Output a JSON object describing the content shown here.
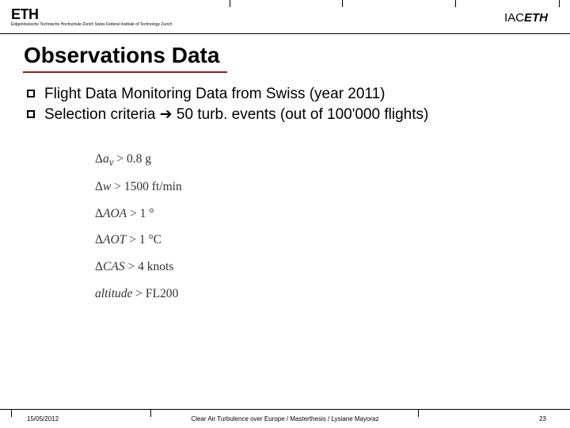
{
  "header": {
    "logo_main": "ETH",
    "logo_sub": "Eidgenössische Technische Hochschule Zürich\nSwiss Federal Institute of Technology Zurich",
    "iac_prefix": "IAC",
    "iac_suffix": "ETH"
  },
  "title": "Observations Data",
  "bullets": [
    "Flight Data Monitoring Data from Swiss (year 2011)",
    "Selection criteria ➔ 50 turb. events (out of 100'000 flights)"
  ],
  "formulas": [
    "Δa_v > 0.8 g",
    "Δw > 1500 ft/min",
    "ΔAOA > 1 °",
    "ΔAOT > 1 °C",
    "ΔCAS > 4 knots",
    "altitude > FL200"
  ],
  "footer": {
    "date": "15/05/2012",
    "center": "Clear Air Turbulence over Europe / Masterthesis / Lysiane Mayoraz",
    "page": "23"
  },
  "colors": {
    "underline": "#9a1d1d",
    "text": "#000000",
    "background": "#ffffff"
  }
}
